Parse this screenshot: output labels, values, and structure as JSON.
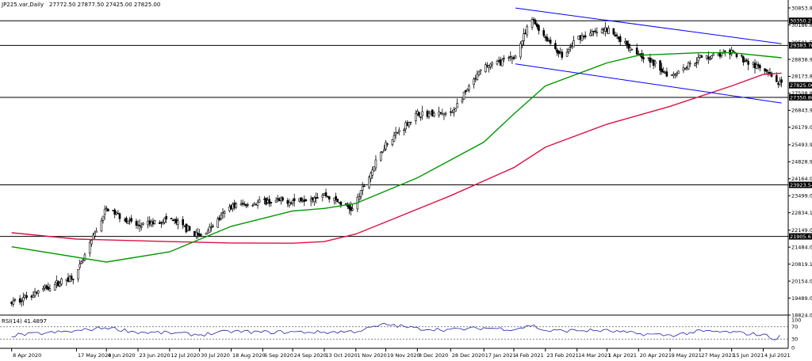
{
  "header": {
    "symbol_text": "JP225.var,Daily",
    "ohlc_text": "27772.50 27877.50 27425.00 27825.00"
  },
  "rsi_label": "RSI(14) 41.4897",
  "chart_data": {
    "type": "candlestick",
    "price_axis": {
      "ticks": [
        "30853.80",
        "30186.85",
        "29501.50",
        "28838.90",
        "28173.85",
        "27508.80",
        "26843.95",
        "26179.00",
        "25493.90",
        "24828.95",
        "24164.00",
        "23499.00",
        "22834.10",
        "22149.00",
        "21484.05",
        "20819.10",
        "20154.05",
        "19489.00",
        "18824.05"
      ],
      "ylim": [
        18824.05,
        30853.8
      ]
    },
    "x_axis": {
      "labels": [
        "8 Apr 2020",
        "17 May 2020",
        "4 Jun 2020",
        "23 Jun 2020",
        "12 Jul 2020",
        "30 Jul 2020",
        "18 Aug 2020",
        "6 Sep 2020",
        "24 Sep 2020",
        "13 Oct 2020",
        "1 Nov 2020",
        "19 Nov 2020",
        "8 Dec 2020",
        "28 Dec 2020",
        "17 Jan 2021",
        "4 Feb 2021",
        "23 Feb 2021",
        "14 Mar 2021",
        "1 Apr 2021",
        "20 Apr 2021",
        "9 May 2021",
        "27 May 2021",
        "15 Jun 2021",
        "4 Jul 2021"
      ]
    },
    "horizontal_levels": [
      {
        "value": 30350.27,
        "label": "30350.27"
      },
      {
        "value": 29383.7,
        "label": "29383.70"
      },
      {
        "value": 27350.86,
        "label": "27350.86"
      },
      {
        "value": 23923.54,
        "label": "23923.54"
      },
      {
        "value": 21905.67,
        "label": "21905.67"
      }
    ],
    "current_price": {
      "value": 27825.0,
      "label": "27825.00"
    },
    "channel": {
      "upper": [
        [
          "5 Feb 2021",
          30850
        ],
        [
          "15 Jul 2021",
          29450
        ]
      ],
      "lower": [
        [
          "5 Feb 2021",
          28660
        ],
        [
          "15 Jul 2021",
          27130
        ]
      ]
    },
    "price_closes": [
      [
        "8 Apr 2020",
        19300
      ],
      [
        "17 May 2020",
        20400
      ],
      [
        "28 May 2020",
        22000
      ],
      [
        "4 Jun 2020",
        23000
      ],
      [
        "23 Jun 2020",
        22300
      ],
      [
        "12 Jul 2020",
        22600
      ],
      [
        "30 Jul 2020",
        21900
      ],
      [
        "8 Aug 2020",
        22400
      ],
      [
        "18 Aug 2020",
        23100
      ],
      [
        "6 Sep 2020",
        23250
      ],
      [
        "24 Sep 2020",
        23300
      ],
      [
        "13 Oct 2020",
        23550
      ],
      [
        "30 Oct 2020",
        22950
      ],
      [
        "1 Nov 2020",
        23250
      ],
      [
        "19 Nov 2020",
        25550
      ],
      [
        "8 Dec 2020",
        26700
      ],
      [
        "28 Dec 2020",
        26700
      ],
      [
        "17 Jan 2021",
        28550
      ],
      [
        "4 Feb 2021",
        28900
      ],
      [
        "15 Feb 2021",
        30400
      ],
      [
        "23 Feb 2021",
        29700
      ],
      [
        "6 Mar 2021",
        28900
      ],
      [
        "14 Mar 2021",
        29700
      ],
      [
        "1 Apr 2021",
        30000
      ],
      [
        "20 Apr 2021",
        29100
      ],
      [
        "9 May 2021",
        28200
      ],
      [
        "27 May 2021",
        28900
      ],
      [
        "15 Jun 2021",
        29100
      ],
      [
        "4 Jul 2021",
        28400
      ],
      [
        "15 Jul 2021",
        27825
      ]
    ],
    "ma_slow": [
      [
        "8 Apr 2020",
        22050
      ],
      [
        "17 May 2020",
        21800
      ],
      [
        "12 Jul 2020",
        21700
      ],
      [
        "18 Aug 2020",
        21650
      ],
      [
        "24 Sep 2020",
        21640
      ],
      [
        "13 Oct 2020",
        21700
      ],
      [
        "1 Nov 2020",
        22000
      ],
      [
        "28 Dec 2020",
        23500
      ],
      [
        "4 Feb 2021",
        24600
      ],
      [
        "23 Feb 2021",
        25400
      ],
      [
        "1 Apr 2021",
        26300
      ],
      [
        "9 May 2021",
        27000
      ],
      [
        "15 Jun 2021",
        27800
      ],
      [
        "4 Jul 2021",
        28250
      ],
      [
        "15 Jul 2021",
        28300
      ]
    ],
    "ma_fast": [
      [
        "8 Apr 2020",
        21500
      ],
      [
        "4 Jun 2020",
        20900
      ],
      [
        "12 Jul 2020",
        21300
      ],
      [
        "18 Aug 2020",
        22300
      ],
      [
        "24 Sep 2020",
        22900
      ],
      [
        "13 Oct 2020",
        23000
      ],
      [
        "1 Nov 2020",
        23200
      ],
      [
        "8 Dec 2020",
        24200
      ],
      [
        "17 Jan 2021",
        25600
      ],
      [
        "4 Feb 2021",
        26700
      ],
      [
        "23 Feb 2021",
        27800
      ],
      [
        "1 Apr 2021",
        28700
      ],
      [
        "20 Apr 2021",
        29000
      ],
      [
        "27 May 2021",
        29100
      ],
      [
        "15 Jun 2021",
        29100
      ],
      [
        "15 Jul 2021",
        28900
      ]
    ],
    "rsi": {
      "name": "RSI(14)",
      "ylim": [
        0,
        100
      ],
      "levels": [
        70,
        30
      ],
      "ticks": [
        "100",
        "70",
        "30",
        "0"
      ],
      "values": [
        [
          "8 Apr 2020",
          42
        ],
        [
          "17 May 2020",
          56
        ],
        [
          "4 Jun 2020",
          68
        ],
        [
          "23 Jun 2020",
          52
        ],
        [
          "12 Jul 2020",
          50
        ],
        [
          "30 Jul 2020",
          44
        ],
        [
          "18 Aug 2020",
          55
        ],
        [
          "6 Sep 2020",
          52
        ],
        [
          "24 Sep 2020",
          53
        ],
        [
          "13 Oct 2020",
          52
        ],
        [
          "1 Nov 2020",
          55
        ],
        [
          "19 Nov 2020",
          78
        ],
        [
          "8 Dec 2020",
          64
        ],
        [
          "28 Dec 2020",
          60
        ],
        [
          "17 Jan 2021",
          66
        ],
        [
          "4 Feb 2021",
          62
        ],
        [
          "15 Feb 2021",
          75
        ],
        [
          "23 Feb 2021",
          56
        ],
        [
          "14 Mar 2021",
          58
        ],
        [
          "1 Apr 2021",
          57
        ],
        [
          "20 Apr 2021",
          47
        ],
        [
          "9 May 2021",
          42
        ],
        [
          "27 May 2021",
          55
        ],
        [
          "15 Jun 2021",
          52
        ],
        [
          "4 Jul 2021",
          44
        ],
        [
          "12 Jul 2021",
          30
        ],
        [
          "15 Jul 2021",
          41.5
        ]
      ]
    }
  },
  "colors": {
    "candle": "#000000",
    "ma_fast": "#009900",
    "ma_slow": "#dd1144",
    "channel": "#0000ff",
    "level": "#000000",
    "rsi_line": "#2222aa",
    "tag_bg": "#000000"
  }
}
